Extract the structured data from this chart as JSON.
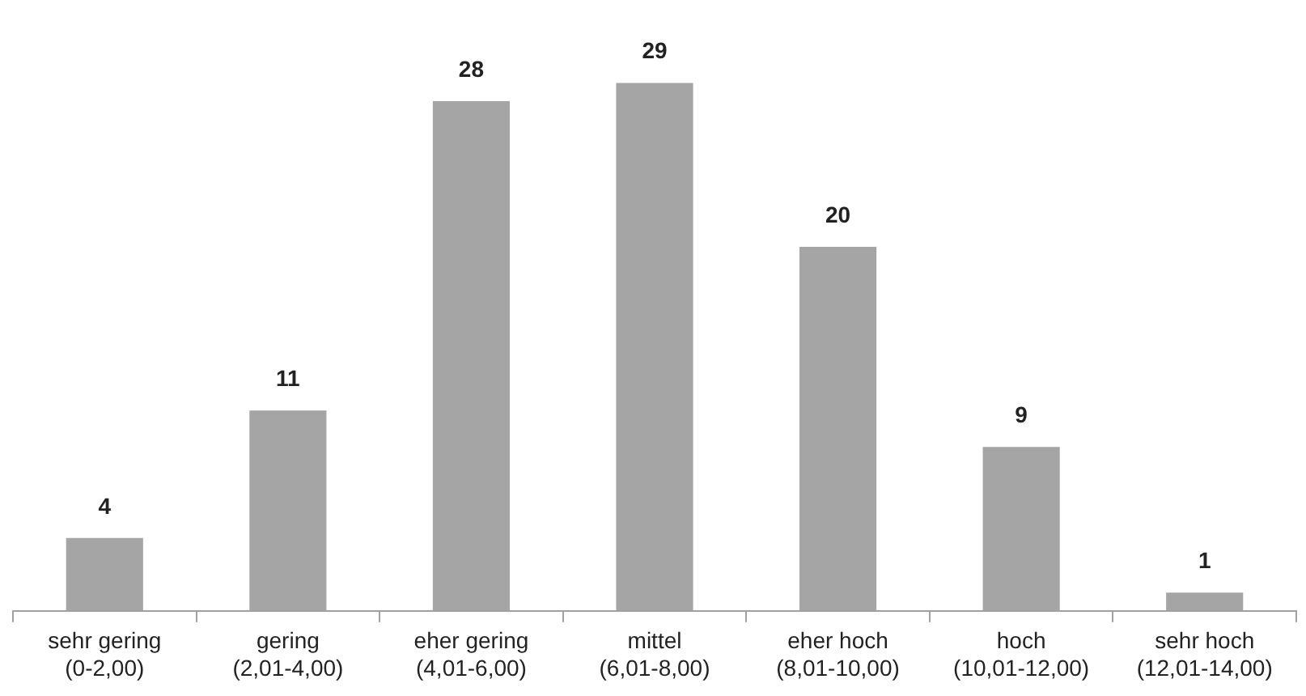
{
  "chart_data": {
    "type": "bar",
    "categories": [
      "sehr gering\n(0-2,00)",
      "gering\n(2,01-4,00)",
      "eher gering\n(4,01-6,00)",
      "mittel\n(6,01-8,00)",
      "eher hoch\n(8,01-10,00)",
      "hoch\n(10,01-12,00)",
      "sehr hoch\n(12,01-14,00)"
    ],
    "values": [
      4,
      11,
      28,
      29,
      20,
      9,
      1
    ],
    "color": "#a5a5a5",
    "data_labels": true,
    "grid": false,
    "legend": false
  }
}
